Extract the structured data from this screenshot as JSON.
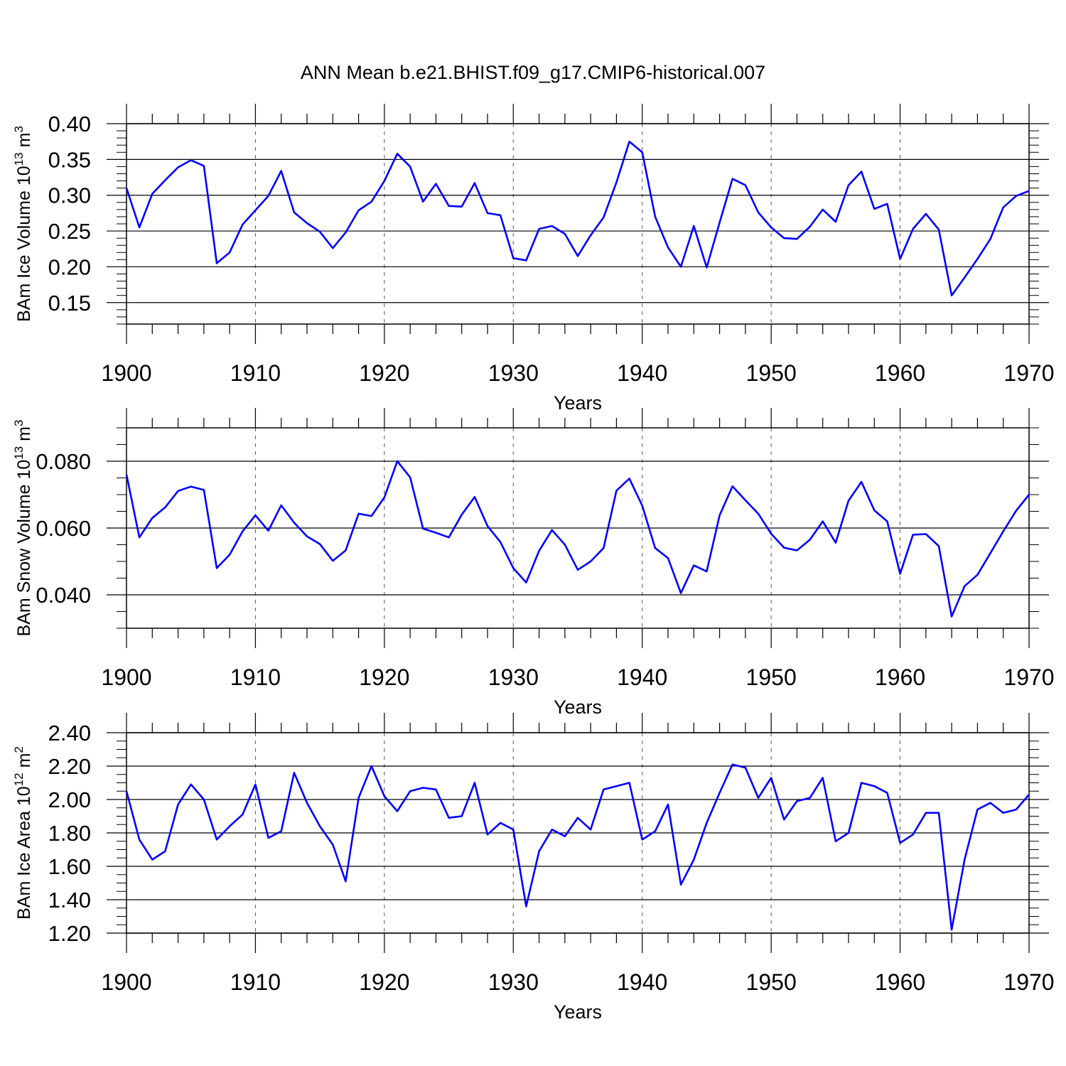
{
  "title": "ANN Mean b.e21.BHIST.f09_g17.CMIP6-historical.007",
  "line_color": "#0000FF",
  "years": [
    1900,
    1901,
    1902,
    1903,
    1904,
    1905,
    1906,
    1907,
    1908,
    1909,
    1910,
    1911,
    1912,
    1913,
    1914,
    1915,
    1916,
    1917,
    1918,
    1919,
    1920,
    1921,
    1922,
    1923,
    1924,
    1925,
    1926,
    1927,
    1928,
    1929,
    1930,
    1931,
    1932,
    1933,
    1934,
    1935,
    1936,
    1937,
    1938,
    1939,
    1940,
    1941,
    1942,
    1943,
    1944,
    1945,
    1946,
    1947,
    1948,
    1949,
    1950,
    1951,
    1952,
    1953,
    1954,
    1955,
    1956,
    1957,
    1958,
    1959,
    1960,
    1961,
    1962,
    1963,
    1964,
    1965,
    1966,
    1967,
    1968,
    1969,
    1970
  ],
  "chart_data": [
    {
      "type": "line",
      "title": "ANN Mean b.e21.BHIST.f09_g17.CMIP6-historical.007",
      "ylabel": "BAm Ice Volume 10^13 m^3",
      "ylabel_main": "BAm Ice Volume 10",
      "ylabel_exp": "13",
      "ylabel_unit": "m",
      "ylabel_unit_exp": "3",
      "xlabel": "Years",
      "xlim": [
        1900,
        1970
      ],
      "ylim": [
        0.12,
        0.4
      ],
      "yticks": [
        0.15,
        0.2,
        0.25,
        0.3,
        0.35,
        0.4
      ],
      "yticklabels": [
        "0.15",
        "0.20",
        "0.25",
        "0.30",
        "0.35",
        "0.40"
      ],
      "yminor": 0.01,
      "xticks": [
        1900,
        1910,
        1920,
        1930,
        1940,
        1950,
        1960,
        1970
      ],
      "xticklabels": [
        "1900",
        "1910",
        "1920",
        "1930",
        "1940",
        "1950",
        "1960",
        "1970"
      ],
      "grid": "vertical dashed at major x ticks",
      "values": [
        0.31,
        0.255,
        0.302,
        0.321,
        0.339,
        0.349,
        0.341,
        0.205,
        0.22,
        0.259,
        0.279,
        0.299,
        0.334,
        0.276,
        0.261,
        0.249,
        0.226,
        0.248,
        0.279,
        0.291,
        0.32,
        0.358,
        0.34,
        0.291,
        0.316,
        0.285,
        0.284,
        0.317,
        0.275,
        0.272,
        0.212,
        0.209,
        0.253,
        0.257,
        0.246,
        0.215,
        0.244,
        0.269,
        0.318,
        0.375,
        0.36,
        0.27,
        0.227,
        0.2,
        0.257,
        0.199,
        0.262,
        0.323,
        0.314,
        0.276,
        0.255,
        0.24,
        0.239,
        0.256,
        0.28,
        0.263,
        0.314,
        0.333,
        0.281,
        0.288,
        0.211,
        0.253,
        0.274,
        0.252,
        0.16,
        0.185,
        0.211,
        0.239,
        0.283,
        0.299,
        0.306
      ]
    },
    {
      "type": "line",
      "ylabel": "BAm Snow Volume 10^13 m^3",
      "ylabel_main": "BAm Snow Volume 10",
      "ylabel_exp": "13",
      "ylabel_unit": "m",
      "ylabel_unit_exp": "3",
      "xlabel": "Years",
      "xlim": [
        1900,
        1970
      ],
      "ylim": [
        0.03,
        0.09
      ],
      "yticks": [
        0.04,
        0.06,
        0.08
      ],
      "yticklabels": [
        "0.040",
        "0.060",
        "0.080"
      ],
      "yminor": 0.005,
      "xticks": [
        1900,
        1910,
        1920,
        1930,
        1940,
        1950,
        1960,
        1970
      ],
      "xticklabels": [
        "1900",
        "1910",
        "1920",
        "1930",
        "1940",
        "1950",
        "1960",
        "1970"
      ],
      "grid": "vertical dashed at major x ticks",
      "values": [
        0.076,
        0.0572,
        0.063,
        0.0662,
        0.0711,
        0.0724,
        0.0714,
        0.048,
        0.052,
        0.059,
        0.0638,
        0.0592,
        0.0668,
        0.0616,
        0.0575,
        0.0552,
        0.0502,
        0.0533,
        0.0643,
        0.0636,
        0.0692,
        0.08,
        0.0752,
        0.0598,
        0.0586,
        0.0572,
        0.064,
        0.0693,
        0.0606,
        0.0558,
        0.048,
        0.0437,
        0.0532,
        0.0594,
        0.055,
        0.0475,
        0.05,
        0.054,
        0.0712,
        0.0748,
        0.0667,
        0.054,
        0.051,
        0.0405,
        0.0488,
        0.047,
        0.0638,
        0.0725,
        0.0683,
        0.0643,
        0.0583,
        0.0541,
        0.0533,
        0.0565,
        0.062,
        0.0556,
        0.0682,
        0.0738,
        0.0653,
        0.062,
        0.0463,
        0.058,
        0.0582,
        0.0546,
        0.0335,
        0.0426,
        0.046,
        0.0525,
        0.059,
        0.0652,
        0.07
      ]
    },
    {
      "type": "line",
      "ylabel": "BAm Ice Area 10^12 m^2",
      "ylabel_main": "BAm Ice Area 10",
      "ylabel_exp": "12",
      "ylabel_unit": "m",
      "ylabel_unit_exp": "2",
      "xlabel": "Years",
      "xlim": [
        1900,
        1970
      ],
      "ylim": [
        1.2,
        2.4
      ],
      "yticks": [
        1.2,
        1.4,
        1.6,
        1.8,
        2.0,
        2.2,
        2.4
      ],
      "yticklabels": [
        "1.20",
        "1.40",
        "1.60",
        "1.80",
        "2.00",
        "2.20",
        "2.40"
      ],
      "yminor": 0.05,
      "xticks": [
        1900,
        1910,
        1920,
        1930,
        1940,
        1950,
        1960,
        1970
      ],
      "xticklabels": [
        "1900",
        "1910",
        "1920",
        "1930",
        "1940",
        "1950",
        "1960",
        "1970"
      ],
      "grid": "vertical dashed at major x ticks",
      "values": [
        2.05,
        1.76,
        1.64,
        1.69,
        1.97,
        2.09,
        2.0,
        1.76,
        1.84,
        1.91,
        2.09,
        1.77,
        1.81,
        2.16,
        1.98,
        1.84,
        1.73,
        1.51,
        2.01,
        2.2,
        2.02,
        1.93,
        2.05,
        2.07,
        2.06,
        1.89,
        1.9,
        2.1,
        1.79,
        1.86,
        1.82,
        1.36,
        1.69,
        1.82,
        1.78,
        1.89,
        1.82,
        2.06,
        2.08,
        2.1,
        1.76,
        1.81,
        1.97,
        1.49,
        1.64,
        1.86,
        2.04,
        2.21,
        2.19,
        2.01,
        2.13,
        1.88,
        1.99,
        2.01,
        2.13,
        1.75,
        1.8,
        2.1,
        2.08,
        2.04,
        1.74,
        1.79,
        1.92,
        1.92,
        1.22,
        1.64,
        1.94,
        1.98,
        1.92,
        1.94,
        2.03
      ]
    }
  ]
}
